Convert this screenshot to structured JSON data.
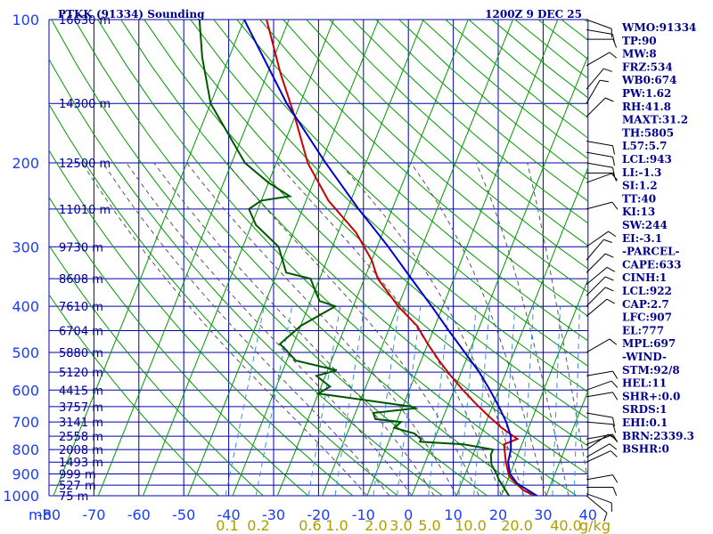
{
  "header": {
    "station": "PTKK (91334) Sounding",
    "time": "1200Z  9 DEC 25"
  },
  "indices": [
    "WMO:91334",
    "TP:90",
    "MW:8",
    "FRZ:534",
    "WB0:674",
    "PW:1.62",
    "RH:41.8",
    "MAXT:31.2",
    "TH:5805",
    "L57:5.7",
    "LCL:943",
    "LI:-1.3",
    "SI:1.2",
    "TT:40",
    "KI:13",
    "SW:244",
    "EI:-3.1",
    "-PARCEL-",
    "CAPE:633",
    "CINH:1",
    "LCL:922",
    "CAP:2.7",
    "LFC:907",
    "EL:777",
    "MPL:697",
    "-WIND-",
    "STM:92/8",
    "HEL:11",
    "SHR+:0.0",
    "SRDS:1",
    "EHI:0.1",
    "BRN:2339.3",
    "BSHR:0"
  ],
  "colors": {
    "background": "#ffffff",
    "grid": "#0000b0",
    "dry_adiabat": "#009900",
    "moist_adiabat": "#555555",
    "mixing_ratio": "#3a8fd8",
    "temperature": "#cc0000",
    "dewpoint": "#005500",
    "parcel": "#0000cc",
    "axis_text": "#1a3cff",
    "header_text": "#00008b",
    "mixing_label": "#b39b00",
    "wind": "#000000"
  },
  "chart_data": {
    "type": "line",
    "title": "PTKK (91334) Sounding",
    "subtitle": "1200Z  9 DEC 25",
    "y_unit_label": "mb",
    "x_unit_label": "g/kg",
    "pressure_ticks": [
      100,
      200,
      300,
      400,
      500,
      600,
      700,
      800,
      900,
      1000
    ],
    "temperature_ticks": [
      -80,
      -70,
      -60,
      -50,
      -40,
      -30,
      -20,
      -10,
      0,
      10,
      20,
      30,
      40
    ],
    "temperature_tick_labels": [
      "-80",
      "-70",
      "-60",
      "-50",
      "-40",
      "-30",
      "-20",
      "-10",
      "0",
      "10",
      "20",
      "30",
      "40"
    ],
    "mixing_ratio_labels": [
      "0.1",
      "0.2",
      "0.6",
      "1.0",
      "2.0",
      "3.0",
      "5.0",
      "10.0",
      "20.0",
      "40.0"
    ],
    "heights": [
      {
        "p": 100,
        "label": "16630 m"
      },
      {
        "p": 150,
        "label": "14300 m"
      },
      {
        "p": 200,
        "label": "12500 m"
      },
      {
        "p": 250,
        "label": "11010 m"
      },
      {
        "p": 300,
        "label": "9730 m"
      },
      {
        "p": 350,
        "label": "8608 m"
      },
      {
        "p": 400,
        "label": "7610 m"
      },
      {
        "p": 450,
        "label": "6704 m"
      },
      {
        "p": 500,
        "label": "5880 m"
      },
      {
        "p": 550,
        "label": "5120 m"
      },
      {
        "p": 600,
        "label": "4415 m"
      },
      {
        "p": 650,
        "label": "3757 m"
      },
      {
        "p": 700,
        "label": "3141 m"
      },
      {
        "p": 750,
        "label": "2558 m"
      },
      {
        "p": 800,
        "label": "2008 m"
      },
      {
        "p": 850,
        "label": "1493 m"
      },
      {
        "p": 900,
        "label": "999 m"
      },
      {
        "p": 950,
        "label": "527 m"
      },
      {
        "p": 1000,
        "label": "75 m"
      }
    ],
    "series": [
      {
        "key": "temperature",
        "points": [
          [
            1006,
            28.5
          ],
          [
            975,
            24.5
          ],
          [
            925,
            21
          ],
          [
            910,
            20
          ],
          [
            850,
            18
          ],
          [
            780,
            16
          ],
          [
            760,
            18.5
          ],
          [
            720,
            14
          ],
          [
            680,
            10
          ],
          [
            640,
            6
          ],
          [
            600,
            2
          ],
          [
            560,
            -2
          ],
          [
            520,
            -6
          ],
          [
            480,
            -10
          ],
          [
            440,
            -14
          ],
          [
            400,
            -20
          ],
          [
            350,
            -27
          ],
          [
            320,
            -30
          ],
          [
            280,
            -36
          ],
          [
            240,
            -45
          ],
          [
            200,
            -53
          ],
          [
            160,
            -60
          ],
          [
            130,
            -67
          ],
          [
            100,
            -75
          ]
        ]
      },
      {
        "key": "dewpoint",
        "points": [
          [
            1006,
            22
          ],
          [
            925,
            18
          ],
          [
            900,
            17
          ],
          [
            860,
            15
          ],
          [
            820,
            14
          ],
          [
            800,
            14
          ],
          [
            780,
            7
          ],
          [
            770,
            -3
          ],
          [
            760,
            -3
          ],
          [
            740,
            -5
          ],
          [
            720,
            -10
          ],
          [
            700,
            -9
          ],
          [
            690,
            -15
          ],
          [
            670,
            -16
          ],
          [
            655,
            -7
          ],
          [
            650,
            -8
          ],
          [
            610,
            -30
          ],
          [
            590,
            -28
          ],
          [
            560,
            -32
          ],
          [
            545,
            -28
          ],
          [
            520,
            -38
          ],
          [
            495,
            -41
          ],
          [
            480,
            -43
          ],
          [
            440,
            -40
          ],
          [
            400,
            -34
          ],
          [
            390,
            -38
          ],
          [
            370,
            -40
          ],
          [
            350,
            -42
          ],
          [
            340,
            -48
          ],
          [
            300,
            -52
          ],
          [
            270,
            -59
          ],
          [
            250,
            -62
          ],
          [
            240,
            -60
          ],
          [
            235,
            -54
          ],
          [
            220,
            -60
          ],
          [
            200,
            -67
          ],
          [
            150,
            -80
          ],
          [
            120,
            -86
          ],
          [
            100,
            -90
          ]
        ]
      },
      {
        "key": "parcel",
        "points": [
          [
            1006,
            28.5
          ],
          [
            943,
            22.5
          ],
          [
            900,
            20
          ],
          [
            850,
            18.5
          ],
          [
            800,
            18
          ],
          [
            750,
            16.8
          ],
          [
            700,
            14.5
          ],
          [
            650,
            11.5
          ],
          [
            600,
            8
          ],
          [
            550,
            4
          ],
          [
            500,
            -1
          ],
          [
            450,
            -6.5
          ],
          [
            400,
            -12.5
          ],
          [
            350,
            -19.5
          ],
          [
            300,
            -27.5
          ],
          [
            250,
            -37.5
          ],
          [
            200,
            -49
          ],
          [
            150,
            -63
          ],
          [
            100,
            -80
          ]
        ]
      }
    ],
    "winds": [
      {
        "p": 1000,
        "dir": 130,
        "spd": 10
      },
      {
        "p": 990,
        "dir": 110,
        "spd": 10
      },
      {
        "p": 960,
        "dir": 90,
        "spd": 10
      },
      {
        "p": 925,
        "dir": 80,
        "spd": 10
      },
      {
        "p": 850,
        "dir": 65,
        "spd": 10
      },
      {
        "p": 830,
        "dir": 60,
        "spd": 10
      },
      {
        "p": 800,
        "dir": 55,
        "spd": 10
      },
      {
        "p": 780,
        "dir": 70,
        "spd": 10
      },
      {
        "p": 760,
        "dir": 80,
        "spd": 10
      },
      {
        "p": 700,
        "dir": 95,
        "spd": 10
      },
      {
        "p": 670,
        "dir": 100,
        "spd": 10
      },
      {
        "p": 620,
        "dir": 80,
        "spd": 10
      },
      {
        "p": 600,
        "dir": 70,
        "spd": 10
      },
      {
        "p": 560,
        "dir": 80,
        "spd": 10
      },
      {
        "p": 500,
        "dir": 60,
        "spd": 10
      },
      {
        "p": 420,
        "dir": 50,
        "spd": 10
      },
      {
        "p": 400,
        "dir": 45,
        "spd": 10
      },
      {
        "p": 380,
        "dir": 45,
        "spd": 10
      },
      {
        "p": 360,
        "dir": 50,
        "spd": 10
      },
      {
        "p": 340,
        "dir": 45,
        "spd": 10
      },
      {
        "p": 320,
        "dir": 40,
        "spd": 10
      },
      {
        "p": 300,
        "dir": 55,
        "spd": 10
      },
      {
        "p": 250,
        "dir": 75,
        "spd": 10
      },
      {
        "p": 220,
        "dir": 70,
        "spd": 10
      },
      {
        "p": 210,
        "dir": 90,
        "spd": 10
      },
      {
        "p": 200,
        "dir": 100,
        "spd": 10
      },
      {
        "p": 190,
        "dir": 100,
        "spd": 10
      },
      {
        "p": 180,
        "dir": 100,
        "spd": 10
      },
      {
        "p": 160,
        "dir": 45,
        "spd": 10
      },
      {
        "p": 150,
        "dir": 30,
        "spd": 10
      },
      {
        "p": 140,
        "dir": 40,
        "spd": 10
      },
      {
        "p": 125,
        "dir": 60,
        "spd": 10
      },
      {
        "p": 110,
        "dir": 90,
        "spd": 10
      },
      {
        "p": 105,
        "dir": 100,
        "spd": 10
      },
      {
        "p": 100,
        "dir": 110,
        "spd": 10
      }
    ]
  }
}
